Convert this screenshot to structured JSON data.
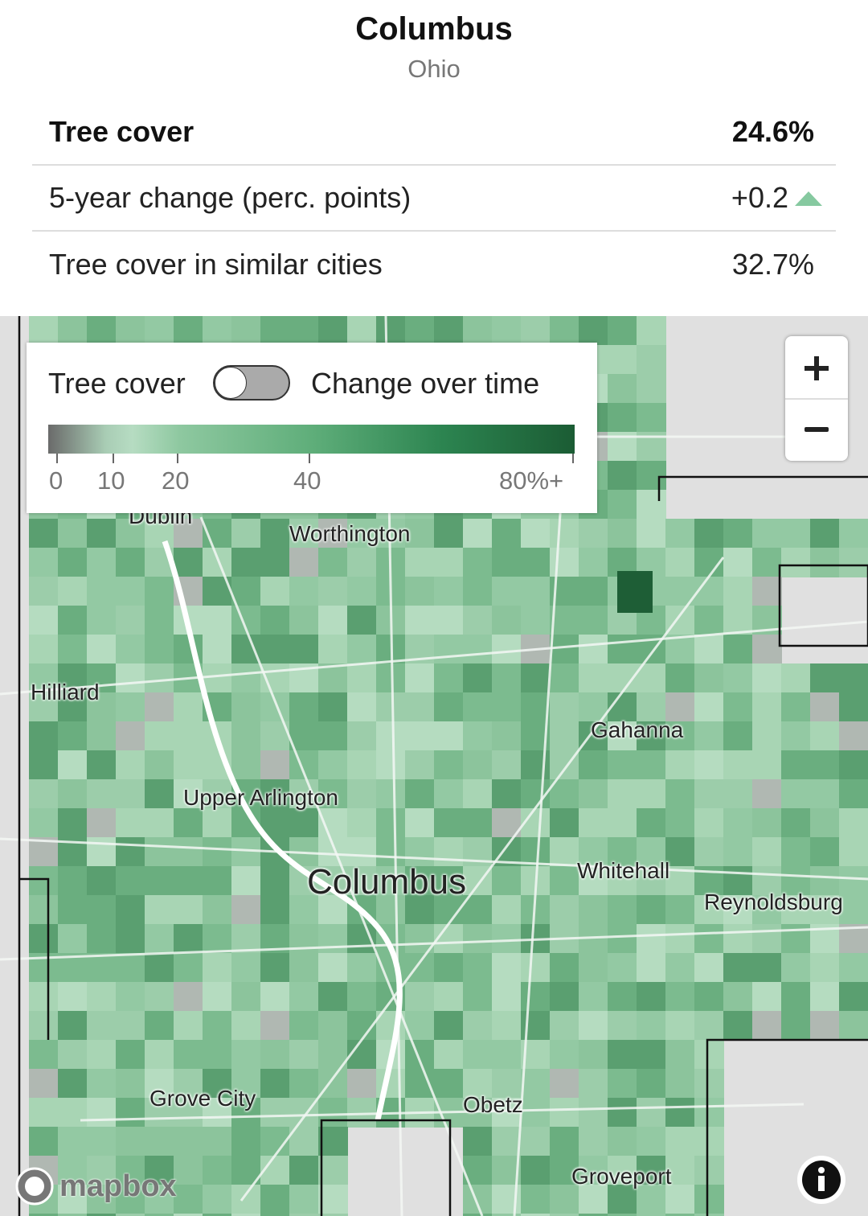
{
  "header": {
    "title": "Columbus",
    "subtitle": "Ohio"
  },
  "stats": {
    "rows": [
      [
        "Tree cover",
        "24.6%"
      ],
      [
        "5-year change (perc. points)",
        "+0.2"
      ],
      [
        "Tree cover in similar cities",
        "32.7%"
      ]
    ]
  },
  "legend": {
    "toggle_left": "Tree cover",
    "toggle_right": "Change over time",
    "ticks": [
      "0",
      "10",
      "20",
      "40",
      "80%+"
    ]
  },
  "map": {
    "labels": [
      "Dublin",
      "Worthington",
      "Hilliard",
      "Gahanna",
      "Upper Arlington",
      "Columbus",
      "Whitehall",
      "Reynoldsburg",
      "Grove City",
      "Obetz",
      "Groveport"
    ],
    "attribution": "mapbox"
  }
}
